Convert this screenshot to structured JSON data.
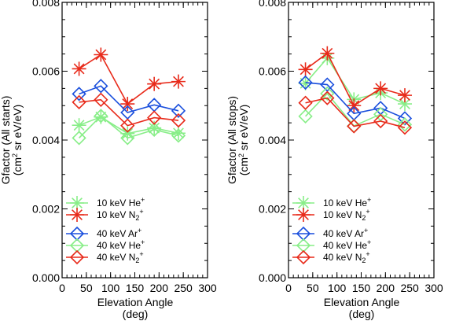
{
  "chart_data": [
    {
      "type": "line",
      "ylabel_line1": "Gfactor (All starts)",
      "ylabel_line2": "(cm",
      "ylabel_sup": "2",
      "ylabel_line2_rest": " sr eV/eV)",
      "xlabel": "Elevation Angle",
      "xlabel_unit": "(deg)",
      "xlim": [
        0,
        300
      ],
      "ylim": [
        0.0,
        0.008
      ],
      "xticks": [
        "0",
        "50",
        "100",
        "150",
        "200",
        "250",
        "300"
      ],
      "yticks": [
        "0.000",
        "0.002",
        "0.004",
        "0.006",
        "0.008"
      ],
      "x": [
        35,
        80,
        135,
        190,
        240
      ],
      "series": [
        {
          "name": "10 keV He",
          "sup": "+",
          "marker": "star",
          "color": "#88ee88",
          "values": [
            0.00443,
            0.00467,
            0.00419,
            0.00435,
            0.0042
          ]
        },
        {
          "name": "10 keV N",
          "sub": "2",
          "sup": "+",
          "marker": "star",
          "color": "#e82a1a",
          "values": [
            0.00607,
            0.00648,
            0.00505,
            0.00563,
            0.0057
          ]
        },
        {
          "name": "40 keV Ar",
          "sup": "+",
          "marker": "diamond",
          "color": "#1a4fdd",
          "values": [
            0.00534,
            0.00557,
            0.0048,
            0.00502,
            0.00485
          ]
        },
        {
          "name": "40 keV He",
          "sup": "+",
          "marker": "diamond",
          "color": "#88ee88",
          "values": [
            0.00406,
            0.0047,
            0.00406,
            0.0043,
            0.00413
          ]
        },
        {
          "name": "40 keV N",
          "sub": "2",
          "sup": "+",
          "marker": "diamond",
          "color": "#e82a1a",
          "values": [
            0.0051,
            0.00517,
            0.00442,
            0.00465,
            0.00457
          ]
        }
      ]
    },
    {
      "type": "line",
      "ylabel_line1": "Gfactor (All stops)",
      "ylabel_line2": "(cm",
      "ylabel_sup": "2",
      "ylabel_line2_rest": " sr eV/eV)",
      "xlabel": "Elevation Angle",
      "xlabel_unit": "(deg)",
      "xlim": [
        0,
        300
      ],
      "ylim": [
        0.0,
        0.008
      ],
      "xticks": [
        "0",
        "50",
        "100",
        "150",
        "200",
        "250",
        "300"
      ],
      "yticks": [
        "0.000",
        "0.002",
        "0.004",
        "0.006",
        "0.008"
      ],
      "x": [
        35,
        80,
        135,
        190,
        240
      ],
      "series": [
        {
          "name": "10 keV He",
          "sup": "+",
          "marker": "star",
          "color": "#88ee88",
          "values": [
            0.00565,
            0.00638,
            0.00518,
            0.00537,
            0.00505
          ]
        },
        {
          "name": "10 keV N",
          "sub": "2",
          "sup": "+",
          "marker": "star",
          "color": "#e82a1a",
          "values": [
            0.00605,
            0.00652,
            0.005,
            0.0055,
            0.0053
          ]
        },
        {
          "name": "40 keV Ar",
          "sup": "+",
          "marker": "diamond",
          "color": "#1a4fdd",
          "values": [
            0.00567,
            0.00561,
            0.00477,
            0.00493,
            0.00463
          ]
        },
        {
          "name": "40 keV He",
          "sup": "+",
          "marker": "diamond",
          "color": "#88ee88",
          "values": [
            0.00469,
            0.00535,
            0.00441,
            0.00475,
            0.00445
          ]
        },
        {
          "name": "40 keV N",
          "sub": "2",
          "sup": "+",
          "marker": "diamond",
          "color": "#e82a1a",
          "values": [
            0.00508,
            0.00522,
            0.0044,
            0.00455,
            0.00436
          ]
        }
      ]
    }
  ]
}
